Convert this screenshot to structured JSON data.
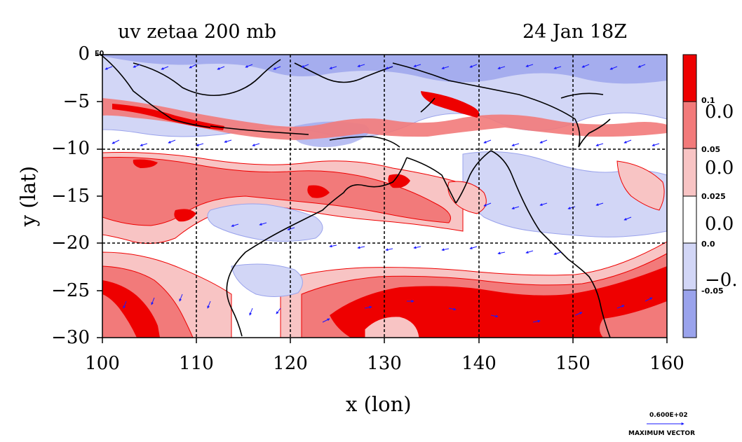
{
  "title_left": "uv zetaa 200 mb",
  "title_right": "24 Jan 18Z",
  "x_axis": {
    "label": "x (lon)",
    "ticks": [
      "100",
      "110",
      "120",
      "130",
      "140",
      "150",
      "160"
    ],
    "range": [
      100,
      160
    ]
  },
  "y_axis": {
    "label": "y (lat)",
    "ticks": [
      "0",
      "−5",
      "−10",
      "−15",
      "−20",
      "−25",
      "−30"
    ],
    "range": [
      -30,
      0
    ]
  },
  "corner_label": "EQ",
  "colorbar": {
    "labels": [
      "0.1",
      "0.05",
      "0.025",
      "0.0",
      "-0.05"
    ],
    "large_labels": [
      "0.0",
      "0.0",
      "0.0",
      "−0."
    ],
    "colors": [
      "#ee0000",
      "#f27a7a",
      "#f8c4c4",
      "#ffffff",
      "#d2d6f6",
      "#9aa3ec"
    ]
  },
  "max_vector": {
    "value": "0.600E+02",
    "label": "MAXIMUM VECTOR"
  },
  "colors": {
    "vector": "#1a1aff",
    "coast": "#000000",
    "strong_pos": "#ee0000",
    "pos": "#f27a7a",
    "weak_pos": "#f8c4c4",
    "weak_neg": "#d2d6f6",
    "neg": "#9aa3ec"
  }
}
